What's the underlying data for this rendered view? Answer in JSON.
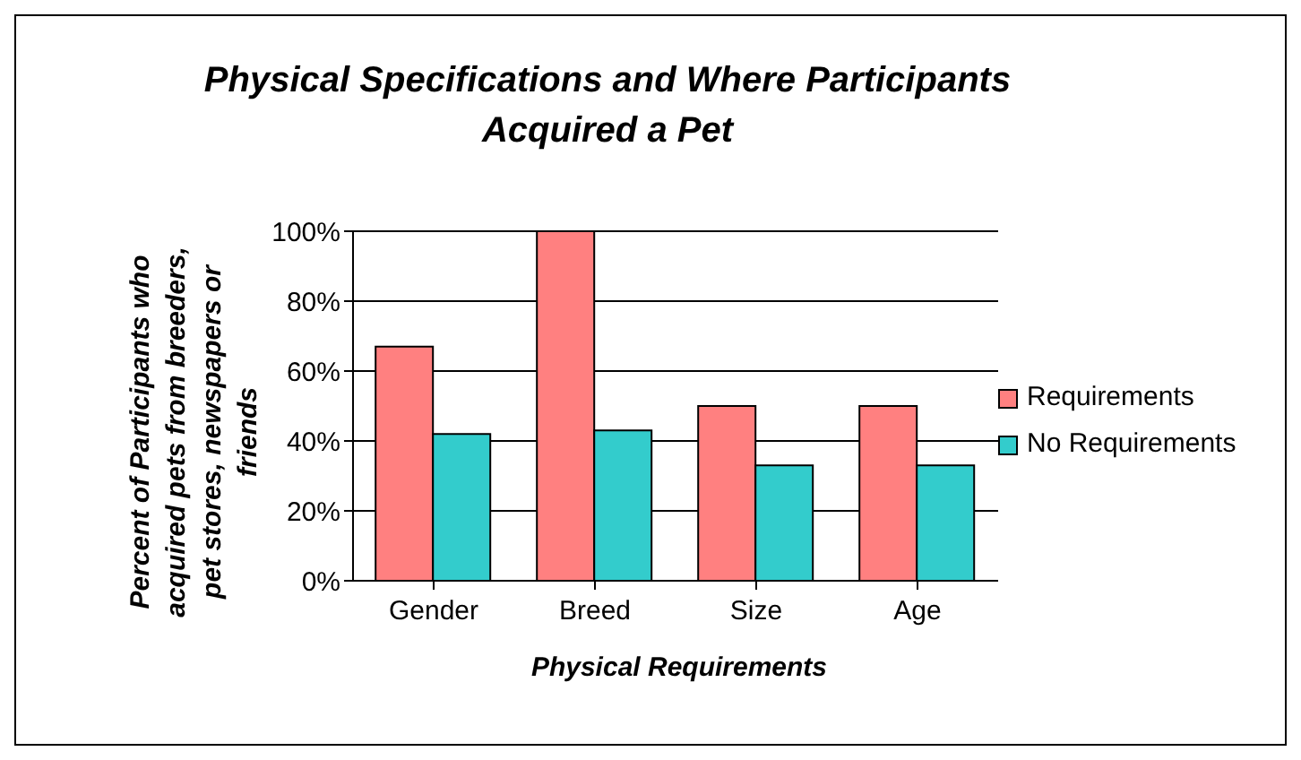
{
  "chart_data": {
    "type": "bar",
    "title": "Physical Specifications and Where Participants Acquired a Pet",
    "xlabel": "Physical Requirements",
    "ylabel": "Percent of Participants who acquired pets from breeders, pet stores, newspapers or friends",
    "categories": [
      "Gender",
      "Breed",
      "Size",
      "Age"
    ],
    "series": [
      {
        "name": "Requirements",
        "color": "#ff8080",
        "values": [
          67,
          100,
          50,
          50
        ]
      },
      {
        "name": "No Requirements",
        "color": "#33cccc",
        "values": [
          42,
          43,
          33,
          33
        ]
      }
    ],
    "ylim": [
      0,
      100
    ],
    "yticks": [
      {
        "value": 0,
        "label": "0%"
      },
      {
        "value": 20,
        "label": "20%"
      },
      {
        "value": 40,
        "label": "40%"
      },
      {
        "value": 60,
        "label": "60%"
      },
      {
        "value": 80,
        "label": "80%"
      },
      {
        "value": 100,
        "label": "100%"
      }
    ],
    "grid": "y",
    "legend": "right"
  }
}
